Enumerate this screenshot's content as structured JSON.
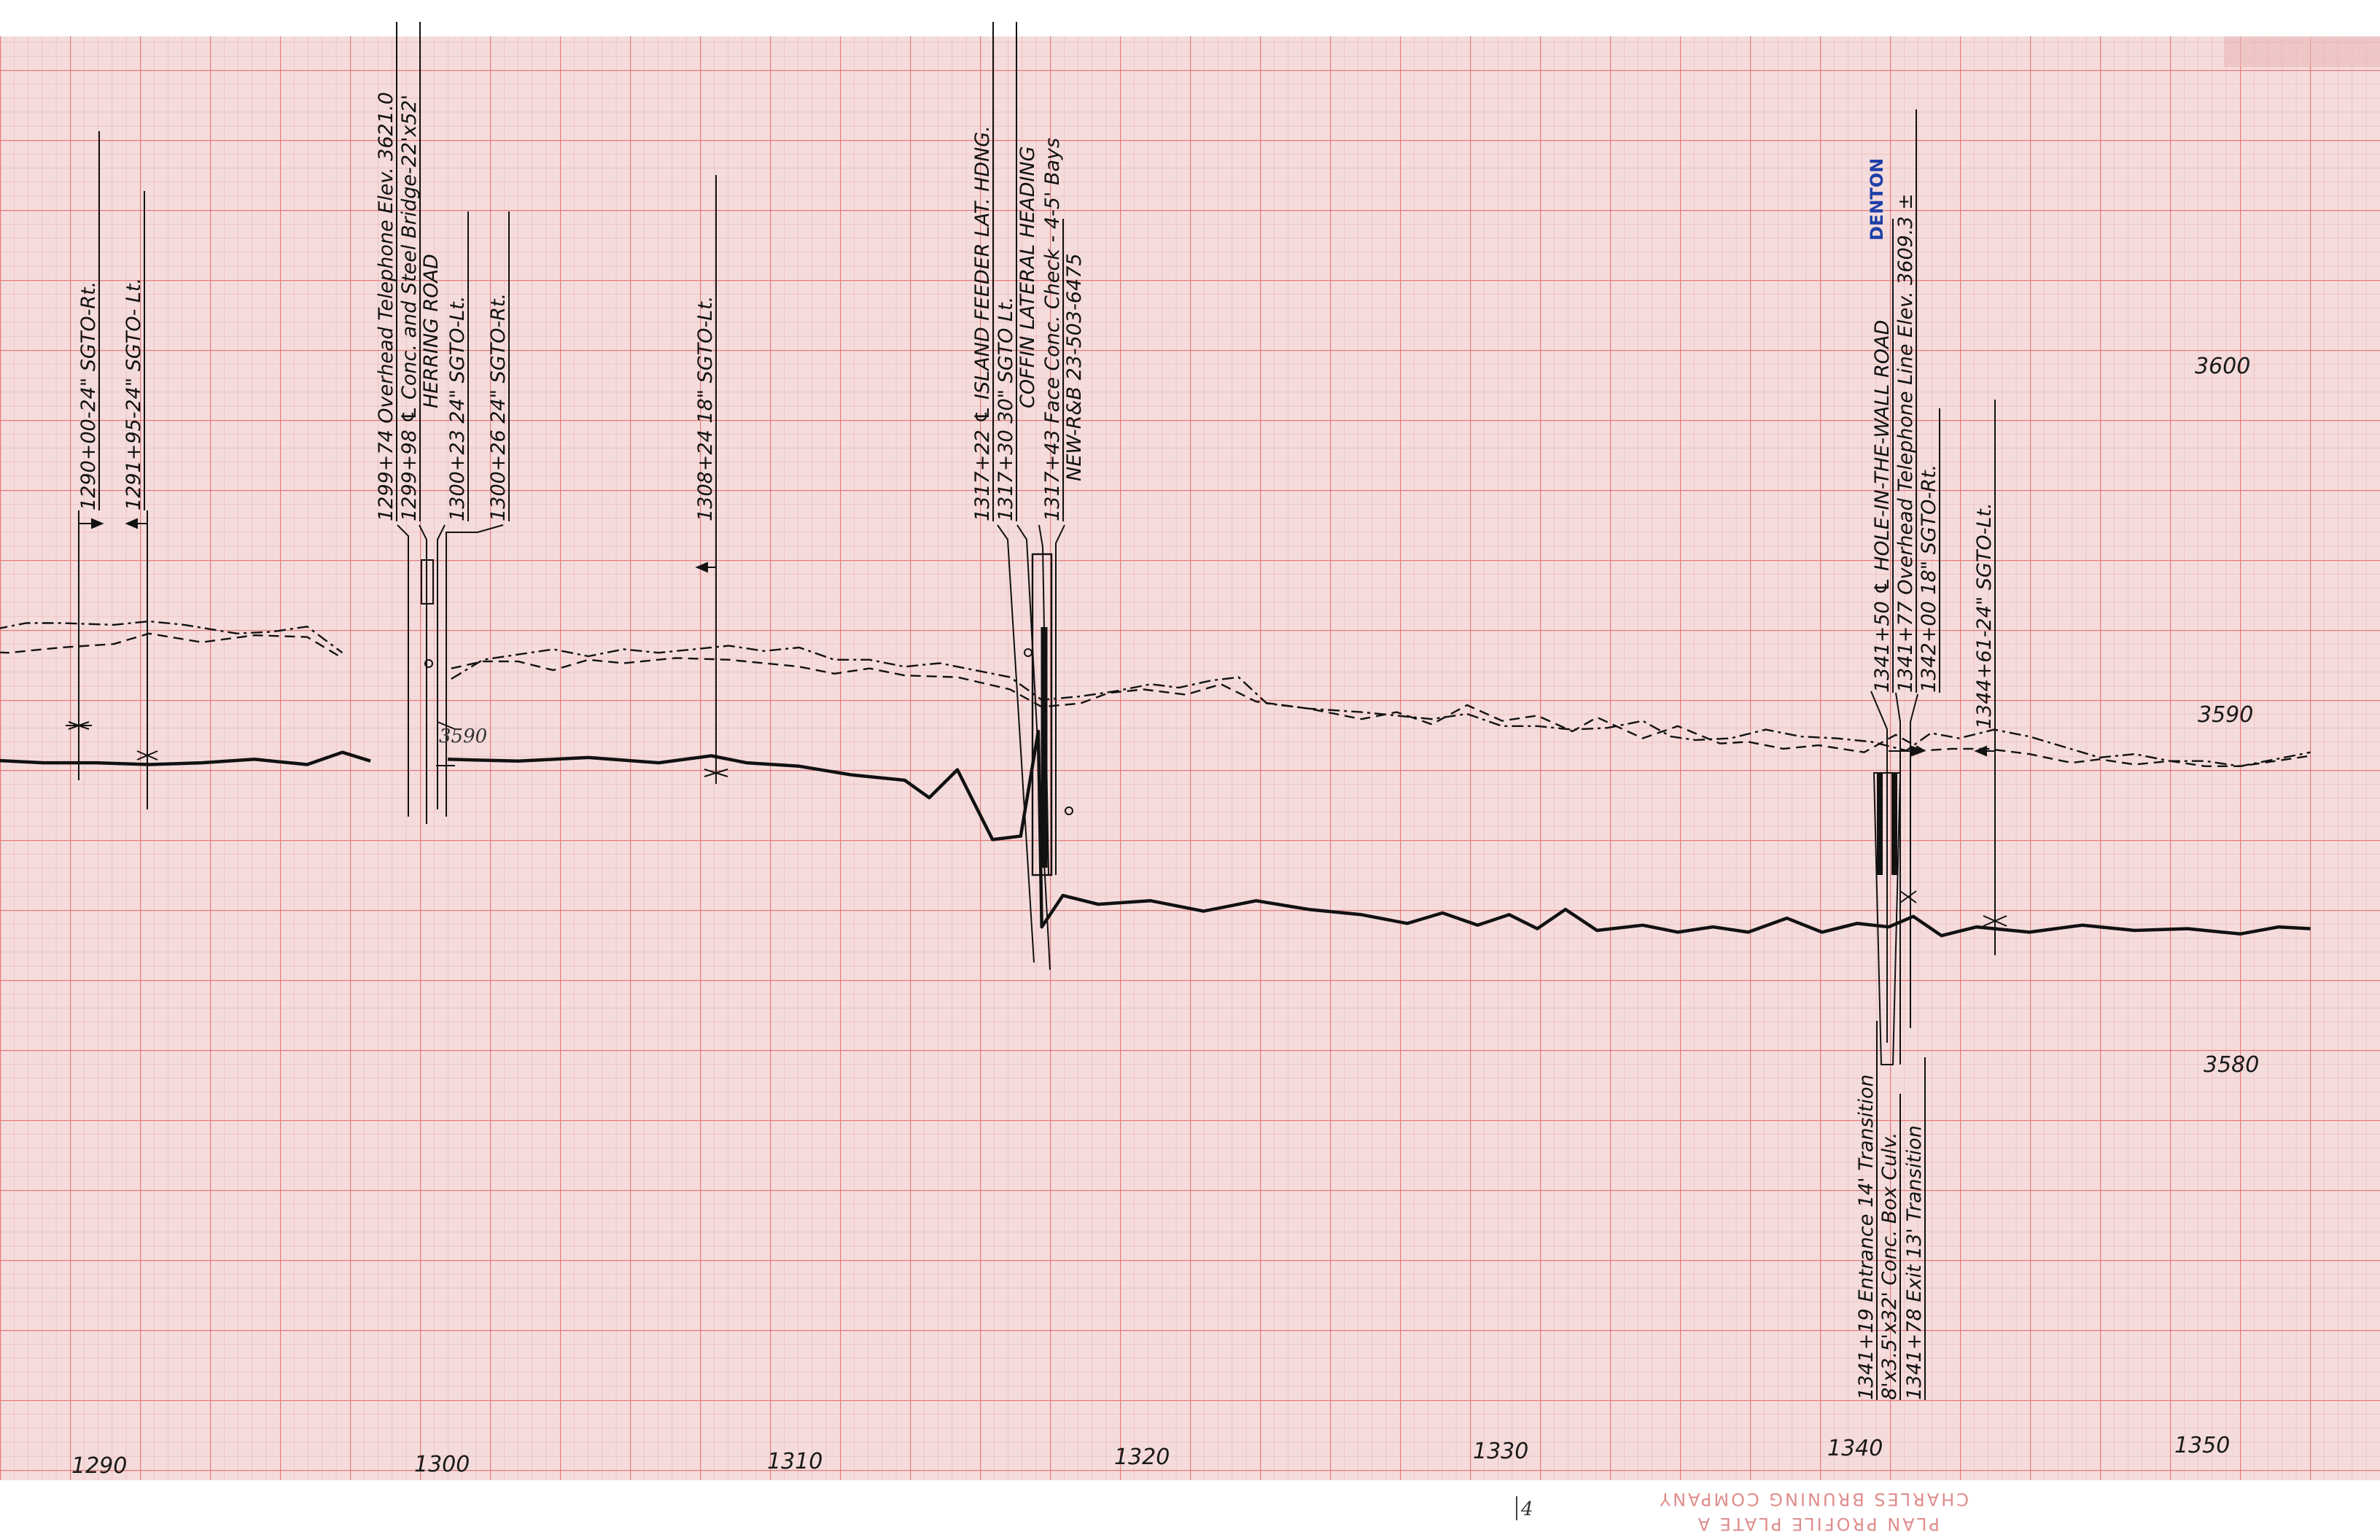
{
  "sheet": {
    "grid_color_minor": "#f0a7a7",
    "grid_color_major": "#e57a7a",
    "paper_color": "#f4dcdc",
    "ink_color": "#111111"
  },
  "elevation_labels": [
    "3600",
    "3590",
    "3580"
  ],
  "station_labels": [
    "1290",
    "1300",
    "1310",
    "1320",
    "1330",
    "1340",
    "1350"
  ],
  "hand_note": "3590",
  "maker_imprint": {
    "line1": "CHARLES BRUNING COMPANY",
    "line2": "PLAN PROFILE PLATE A"
  },
  "page_mark": "4",
  "notes": [
    {
      "key": "n1290",
      "text": "1290+00-24\" SGTO-Rt."
    },
    {
      "key": "n1291",
      "text": "1291+95-24\" SGTO- Lt."
    },
    {
      "key": "n1299a",
      "text": "1299+74 Overhead Telephone Elev. 3621.0"
    },
    {
      "key": "n1299b",
      "text": "1299+98 ℄ Conc. and Steel Bridge-22'x52'"
    },
    {
      "key": "n1299c",
      "text": "HERRING ROAD"
    },
    {
      "key": "n1300a",
      "text": "1300+23 24\" SGTO-Lt."
    },
    {
      "key": "n1300b",
      "text": "1300+26 24\" SGTO-Rt."
    },
    {
      "key": "n1308",
      "text": "1308+24 18\" SGTO-Lt."
    },
    {
      "key": "n1317a",
      "text": "1317+22 ℄ ISLAND FEEDER LAT. HDNG."
    },
    {
      "key": "n1317b",
      "text": "1317+30 30\" SGTO Lt."
    },
    {
      "key": "n1317c",
      "text": "COFFIN LATERAL HEADING"
    },
    {
      "key": "n1317d",
      "text": "1317+43 Face Conc. Check - 4-5' Bays"
    },
    {
      "key": "n1317e",
      "text": "NEW-R&B  23-503-6475"
    },
    {
      "key": "n1341blue",
      "text": "DENTON"
    },
    {
      "key": "n1341a",
      "text": "1341+50 ℄ HOLE-IN-THE-WALL ROAD"
    },
    {
      "key": "n1341b",
      "text": "1341+77 Overhead Telephone Line Elev. 3609.3 ±"
    },
    {
      "key": "n1342",
      "text": "1342+00 18\" SGTO-Rt."
    },
    {
      "key": "n1344",
      "text": "1344+61-24\" SGTO-Lt."
    },
    {
      "key": "n1341c",
      "text": "1341+19 Entrance 14' Transition"
    },
    {
      "key": "n1341d",
      "text": "8'x3.5'x32' Conc. Box Culv."
    },
    {
      "key": "n1341e",
      "text": "1341+78 Exit 13' Transition"
    }
  ],
  "profiles": {
    "canal_bottom": [
      [
        1285.0,
        3588.8
      ],
      [
        1287.0,
        3588.7
      ],
      [
        1289.0,
        3588.6
      ],
      [
        1290.5,
        3588.6
      ],
      [
        1292.0,
        3588.55
      ],
      [
        1293.5,
        3588.6
      ],
      [
        1295.0,
        3588.7
      ],
      [
        1296.5,
        3588.55
      ],
      [
        1297.5,
        3588.9
      ],
      [
        1298.3,
        3588.65
      ],
      [
        null,
        null
      ],
      [
        1300.5,
        3588.7
      ],
      [
        1302.5,
        3588.65
      ],
      [
        1304.5,
        3588.75
      ],
      [
        1306.5,
        3588.6
      ],
      [
        1308.0,
        3588.8
      ],
      [
        1309.0,
        3588.6
      ],
      [
        1310.5,
        3588.5
      ],
      [
        1312.0,
        3588.25
      ],
      [
        1313.5,
        3588.1
      ],
      [
        1314.2,
        3587.6
      ],
      [
        1315.0,
        3588.4
      ],
      [
        1316.0,
        3586.4
      ],
      [
        1316.8,
        3586.5
      ],
      [
        1317.3,
        3589.5
      ],
      [
        1317.4,
        3583.9
      ],
      [
        1318.0,
        3584.8
      ],
      [
        1319.0,
        3584.55
      ],
      [
        1320.5,
        3584.65
      ],
      [
        1322.0,
        3584.35
      ],
      [
        1323.5,
        3584.65
      ],
      [
        1325.0,
        3584.4
      ],
      [
        1326.5,
        3584.25
      ],
      [
        1327.8,
        3584.0
      ],
      [
        1328.8,
        3584.3
      ],
      [
        1329.8,
        3583.95
      ],
      [
        1330.7,
        3584.25
      ],
      [
        1331.5,
        3583.85
      ],
      [
        1332.3,
        3584.4
      ],
      [
        1333.2,
        3583.8
      ],
      [
        1334.5,
        3583.95
      ],
      [
        1335.5,
        3583.75
      ],
      [
        1336.5,
        3583.9
      ],
      [
        1337.5,
        3583.75
      ],
      [
        1338.6,
        3584.15
      ],
      [
        1339.6,
        3583.75
      ],
      [
        1340.6,
        3584.0
      ],
      [
        1341.5,
        3583.9
      ],
      [
        1342.2,
        3584.2
      ],
      [
        1343.0,
        3583.65
      ],
      [
        1344.0,
        3583.9
      ],
      [
        1345.5,
        3583.75
      ],
      [
        1347.0,
        3583.95
      ],
      [
        1348.5,
        3583.8
      ],
      [
        1350.0,
        3583.85
      ],
      [
        1351.5,
        3583.7
      ],
      [
        1352.6,
        3583.9
      ],
      [
        1353.5,
        3583.85
      ]
    ],
    "right_bank": [
      [
        1285.0,
        3591.7
      ],
      [
        1286.5,
        3591.8
      ],
      [
        1288.0,
        3591.75
      ],
      [
        1289.5,
        3591.9
      ],
      [
        1291.0,
        3592.0
      ],
      [
        1292.0,
        3592.3
      ],
      [
        1293.5,
        3592.05
      ],
      [
        1295.0,
        3592.25
      ],
      [
        1296.5,
        3592.2
      ],
      [
        1297.5,
        3591.6
      ],
      [
        null,
        null
      ],
      [
        1300.6,
        3591.3
      ],
      [
        1301.5,
        3591.5
      ],
      [
        1302.5,
        3591.5
      ],
      [
        1303.5,
        3591.25
      ],
      [
        1304.5,
        3591.55
      ],
      [
        1305.5,
        3591.45
      ],
      [
        1307.0,
        3591.6
      ],
      [
        1308.5,
        3591.55
      ],
      [
        1309.5,
        3591.45
      ],
      [
        1310.5,
        3591.35
      ],
      [
        1311.5,
        3591.15
      ],
      [
        1312.5,
        3591.3
      ],
      [
        1313.5,
        3591.1
      ],
      [
        1315.0,
        3591.05
      ],
      [
        1316.5,
        3590.7
      ],
      [
        1317.4,
        3590.2
      ],
      [
        1318.5,
        3590.3
      ],
      [
        1319.3,
        3590.6
      ],
      [
        1320.3,
        3590.7
      ],
      [
        1321.5,
        3590.55
      ],
      [
        1322.5,
        3590.85
      ],
      [
        1323.5,
        3590.35
      ],
      [
        1325.0,
        3590.15
      ],
      [
        1326.5,
        3589.85
      ],
      [
        1327.5,
        3590.05
      ],
      [
        1328.5,
        3589.7
      ],
      [
        1329.5,
        3590.25
      ],
      [
        1330.5,
        3589.8
      ],
      [
        1331.5,
        3589.95
      ],
      [
        1332.5,
        3589.5
      ],
      [
        1333.2,
        3589.9
      ],
      [
        1334.5,
        3589.3
      ],
      [
        1335.5,
        3589.65
      ],
      [
        1336.7,
        3589.15
      ],
      [
        1337.5,
        3589.2
      ],
      [
        1338.5,
        3589.0
      ],
      [
        1339.5,
        3589.1
      ],
      [
        1340.8,
        3588.9
      ],
      [
        1341.7,
        3589.4
      ],
      [
        1342.5,
        3588.95
      ],
      [
        1343.3,
        3589.0
      ],
      [
        1344.3,
        3589.0
      ],
      [
        1345.5,
        3588.85
      ],
      [
        1346.7,
        3588.6
      ],
      [
        1347.5,
        3588.7
      ],
      [
        1348.5,
        3588.55
      ],
      [
        1349.5,
        3588.65
      ],
      [
        1350.5,
        3588.5
      ],
      [
        1351.5,
        3588.5
      ],
      [
        1352.5,
        3588.65
      ],
      [
        1353.5,
        3588.8
      ]
    ],
    "left_bank": [
      [
        1285.0,
        3592.3
      ],
      [
        1286.0,
        3592.25
      ],
      [
        1287.5,
        3592.4
      ],
      [
        1288.5,
        3592.6
      ],
      [
        1289.5,
        3592.6
      ],
      [
        1291.0,
        3592.55
      ],
      [
        1292.0,
        3592.65
      ],
      [
        1293.0,
        3592.55
      ],
      [
        1294.5,
        3592.3
      ],
      [
        1295.5,
        3592.35
      ],
      [
        1296.5,
        3592.5
      ],
      [
        1297.5,
        3591.75
      ],
      [
        null,
        null
      ],
      [
        1300.6,
        3591.0
      ],
      [
        1301.5,
        3591.55
      ],
      [
        1302.5,
        3591.7
      ],
      [
        1303.5,
        3591.85
      ],
      [
        1304.5,
        3591.65
      ],
      [
        1305.5,
        3591.85
      ],
      [
        1306.5,
        3591.75
      ],
      [
        1307.5,
        3591.85
      ],
      [
        1308.5,
        3591.95
      ],
      [
        1309.5,
        3591.8
      ],
      [
        1310.5,
        3591.9
      ],
      [
        1311.5,
        3591.55
      ],
      [
        1312.5,
        3591.55
      ],
      [
        1313.5,
        3591.35
      ],
      [
        1314.5,
        3591.45
      ],
      [
        1315.5,
        3591.25
      ],
      [
        1316.5,
        3591.05
      ],
      [
        1317.4,
        3590.4
      ],
      [
        1318.5,
        3590.5
      ],
      [
        1319.5,
        3590.65
      ],
      [
        1320.5,
        3590.85
      ],
      [
        1321.3,
        3590.75
      ],
      [
        1322.2,
        3590.95
      ],
      [
        1323.0,
        3591.05
      ],
      [
        1323.8,
        3590.3
      ],
      [
        1325.0,
        3590.15
      ],
      [
        1326.5,
        3590.05
      ],
      [
        1327.5,
        3589.95
      ],
      [
        1328.5,
        3589.85
      ],
      [
        1329.5,
        3590.0
      ],
      [
        1330.5,
        3589.65
      ],
      [
        1331.5,
        3589.65
      ],
      [
        1332.5,
        3589.55
      ],
      [
        1333.5,
        3589.6
      ],
      [
        1334.5,
        3589.8
      ],
      [
        1335.3,
        3589.35
      ],
      [
        1336.0,
        3589.25
      ],
      [
        1337.0,
        3589.3
      ],
      [
        1338.0,
        3589.55
      ],
      [
        1339.0,
        3589.35
      ],
      [
        1340.0,
        3589.3
      ],
      [
        1341.0,
        3589.2
      ],
      [
        1342.0,
        3588.95
      ],
      [
        1342.7,
        3589.45
      ],
      [
        1343.5,
        3589.3
      ],
      [
        1344.5,
        3589.55
      ],
      [
        1345.5,
        3589.35
      ],
      [
        1346.5,
        3589.05
      ],
      [
        1347.5,
        3588.75
      ],
      [
        1348.5,
        3588.85
      ],
      [
        1349.5,
        3588.65
      ],
      [
        1350.5,
        3588.65
      ],
      [
        1351.5,
        3588.5
      ],
      [
        1352.5,
        3588.7
      ],
      [
        1353.5,
        3588.9
      ]
    ]
  },
  "structures": [
    1290.0,
    1291.95,
    1299.74,
    1299.98,
    1300.23,
    1300.26,
    1308.24,
    1317.22,
    1317.3,
    1317.43,
    1341.19,
    1341.5,
    1341.77,
    1342.0,
    1344.61
  ]
}
